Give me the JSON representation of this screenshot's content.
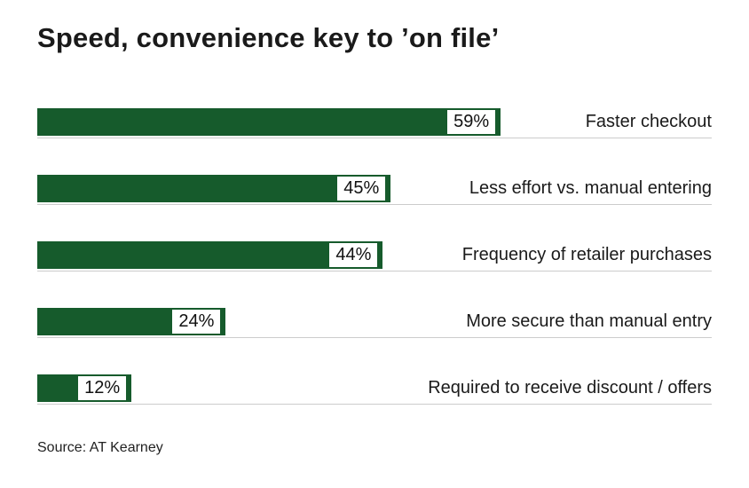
{
  "title": "Speed, convenience key to ’on file’",
  "source": "Source: AT Kearney",
  "chart_data": {
    "type": "bar",
    "orientation": "horizontal",
    "title": "Speed, convenience key to ’on file’",
    "categories": [
      "Faster checkout",
      "Less effort vs. manual entering",
      "Frequency of retailer purchases",
      "More secure than manual entry",
      "Required to receive discount / offers"
    ],
    "values": [
      59,
      45,
      44,
      24,
      12
    ],
    "value_labels": [
      "59%",
      "45%",
      "44%",
      "24%",
      "12%"
    ],
    "xlim": [
      0,
      100
    ],
    "bar_color": "#165b2c",
    "gridline_color": "#cccccc",
    "legend": false,
    "source": "Source: AT Kearney"
  }
}
